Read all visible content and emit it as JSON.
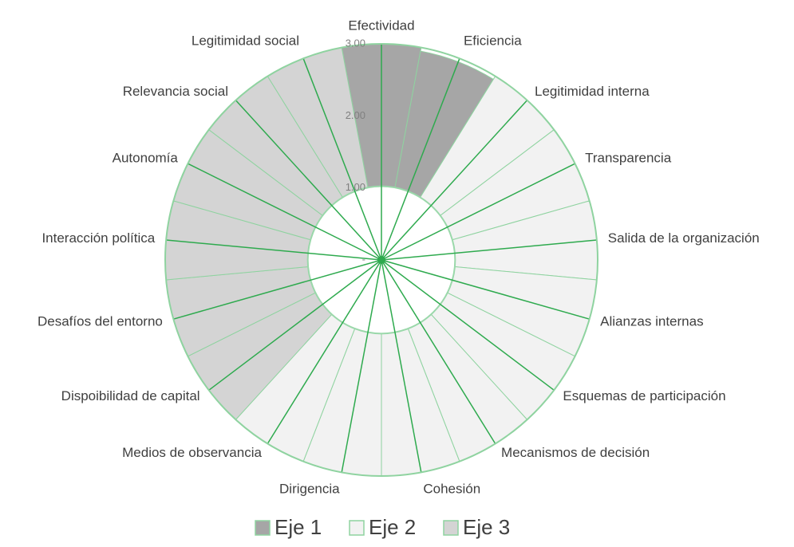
{
  "chart_data": {
    "type": "polar_area",
    "categories": [
      "Efectividad",
      "Eficiencia",
      "Legitimidad interna",
      "Transparencia",
      "Salida de la organización",
      "Alianzas internas",
      "Esquemas de participación",
      "Mecanismos de decisión",
      "Cohesión",
      "Dirigencia",
      "Medios de observancia",
      "Dispoibilidad de capital",
      "Desafíos del entorno",
      "Interacción política",
      "Autonomía",
      "Relevancia social",
      "Legitimidad social"
    ],
    "series": [
      {
        "name": "Eje 1",
        "color": "#a6a6a6",
        "values": [
          3.0,
          2.95,
          null,
          null,
          null,
          null,
          null,
          null,
          null,
          null,
          null,
          null,
          null,
          null,
          null,
          null,
          null
        ]
      },
      {
        "name": "Eje 2",
        "color": "#f2f2f2",
        "values": [
          null,
          null,
          3.0,
          3.0,
          3.0,
          3.0,
          3.0,
          3.0,
          3.0,
          3.0,
          3.0,
          null,
          null,
          null,
          null,
          null,
          null
        ]
      },
      {
        "name": "Eje 3",
        "color": "#d4d4d4",
        "values": [
          null,
          null,
          null,
          null,
          null,
          null,
          null,
          null,
          null,
          null,
          null,
          3.0,
          3.0,
          3.0,
          3.0,
          3.0,
          3.0
        ]
      }
    ],
    "rlim": [
      0,
      3
    ],
    "rticks": [
      {
        "value": 0,
        "label": "-"
      },
      {
        "value": 1,
        "label": "1.00"
      },
      {
        "value": 2,
        "label": "2.00"
      },
      {
        "value": 3,
        "label": "3.00"
      }
    ],
    "grid": true,
    "legend": "bottom"
  }
}
